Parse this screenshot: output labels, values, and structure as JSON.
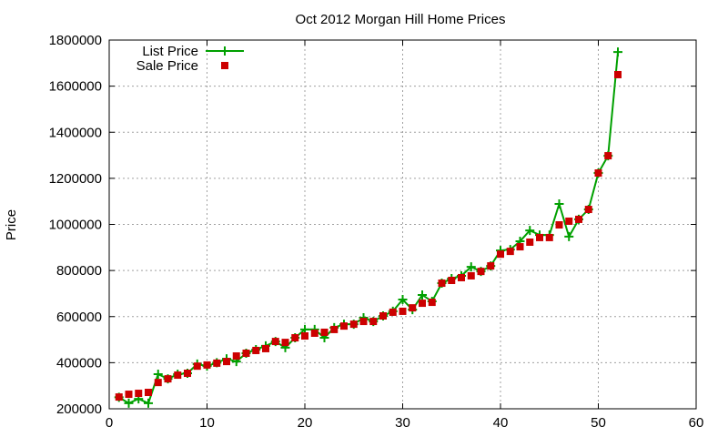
{
  "chart_data": {
    "type": "line",
    "title": "Oct 2012 Morgan Hill Home Prices",
    "xlabel": "",
    "ylabel": "Price",
    "xlim": [
      0,
      60
    ],
    "ylim": [
      200000,
      1800000
    ],
    "xticks": [
      0,
      10,
      20,
      30,
      40,
      50,
      60
    ],
    "yticks": [
      200000,
      400000,
      600000,
      800000,
      1000000,
      1200000,
      1400000,
      1600000,
      1800000
    ],
    "grid": true,
    "legend_position": "top-left",
    "x": [
      1,
      2,
      3,
      4,
      5,
      6,
      7,
      8,
      9,
      10,
      11,
      12,
      13,
      14,
      15,
      16,
      17,
      18,
      19,
      20,
      21,
      22,
      23,
      24,
      25,
      26,
      27,
      28,
      29,
      30,
      31,
      32,
      33,
      34,
      35,
      36,
      37,
      38,
      39,
      40,
      41,
      42,
      43,
      44,
      45,
      46,
      47,
      48,
      49,
      50,
      51,
      52
    ],
    "series": [
      {
        "name": "List Price",
        "style": "linespoints",
        "color": "#00a000",
        "marker": "plus",
        "values": [
          250000,
          224000,
          243000,
          224000,
          350000,
          330000,
          350000,
          354000,
          394000,
          385000,
          400000,
          417000,
          405000,
          441000,
          457000,
          473000,
          492000,
          465000,
          508000,
          544000,
          544000,
          508000,
          552000,
          567000,
          567000,
          595000,
          579000,
          603000,
          623000,
          674000,
          630000,
          694000,
          666000,
          745000,
          765000,
          777000,
          816000,
          796000,
          820000,
          887000,
          891000,
          927000,
          974000,
          954000,
          954000,
          1089000,
          947000,
          1022000,
          1065000,
          1223000,
          1298000,
          1748000
        ]
      },
      {
        "name": "Sale Price",
        "style": "points",
        "color": "#cc0000",
        "marker": "square",
        "values": [
          251000,
          263000,
          267000,
          271000,
          314000,
          330000,
          346000,
          354000,
          385000,
          390000,
          398000,
          405000,
          429000,
          441000,
          453000,
          461000,
          492000,
          488000,
          508000,
          516000,
          528000,
          532000,
          544000,
          559000,
          567000,
          579000,
          579000,
          603000,
          619000,
          623000,
          638000,
          658000,
          662000,
          745000,
          757000,
          769000,
          777000,
          796000,
          820000,
          871000,
          883000,
          903000,
          923000,
          943000,
          943000,
          998000,
          1014000,
          1022000,
          1065000,
          1223000,
          1298000,
          1650000
        ]
      }
    ]
  }
}
